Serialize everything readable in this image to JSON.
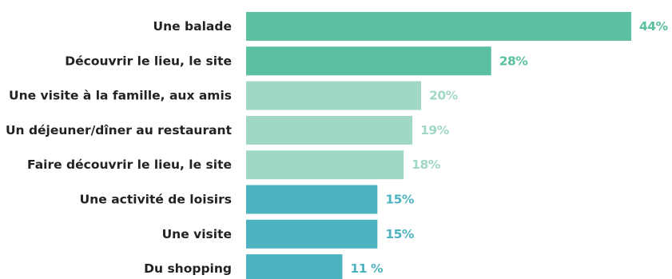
{
  "chart_data": {
    "type": "bar",
    "orientation": "horizontal",
    "title": "",
    "xlabel": "",
    "ylabel": "",
    "categories": [
      "Une balade",
      "Découvrir le lieu, le site",
      "Une visite à la famille, aux amis",
      "Un déjeuner/dîner au restaurant",
      "Faire découvrir le lieu, le site",
      "Une activité de loisirs",
      "Une visite",
      "Du shopping"
    ],
    "values": [
      44,
      28,
      20,
      19,
      18,
      15,
      15,
      11
    ],
    "value_labels": [
      "44%",
      "28%",
      "20%",
      "19%",
      "18%",
      "15%",
      "15%",
      "11 %"
    ],
    "bar_colors": [
      "#5bc0a2",
      "#5bc0a2",
      "#a1d8c3",
      "#a1d8c3",
      "#a1d8c3",
      "#4db3c0",
      "#4db3c0",
      "#4db3c0"
    ],
    "xlim": [
      0,
      44
    ],
    "grid": false,
    "legend": "none"
  }
}
